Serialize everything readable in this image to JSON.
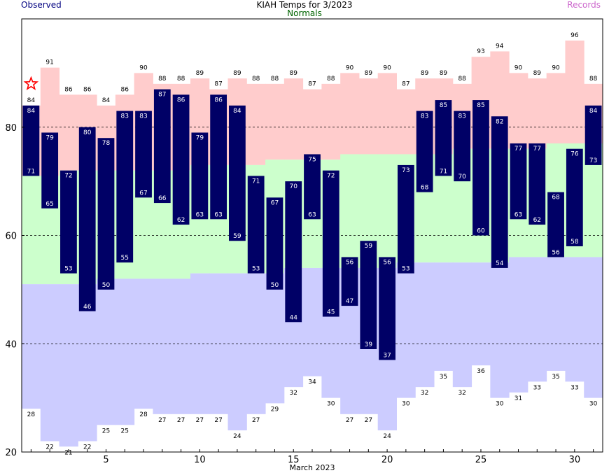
{
  "header": {
    "title": "KIAH Temps for 3/2023",
    "observed_label": "Observed",
    "normals_label": "Normals",
    "records_label": "Records"
  },
  "colors": {
    "observed_bar": "#000066",
    "record_high_band": "#ffcccc",
    "normal_band": "#ccffcc",
    "record_low_band": "#ccccff",
    "observed_text": "#000080",
    "normals_text": "#006400",
    "records_text": "#cc66cc",
    "marker": "#ff0000"
  },
  "chart_data": {
    "type": "bar",
    "xlabel": "March 2023",
    "ylabel": "",
    "x": [
      1,
      2,
      3,
      4,
      5,
      6,
      7,
      8,
      9,
      10,
      11,
      12,
      13,
      14,
      15,
      16,
      17,
      18,
      19,
      20,
      21,
      22,
      23,
      24,
      25,
      26,
      27,
      28,
      29,
      30,
      31
    ],
    "xticks": [
      5,
      10,
      15,
      20,
      25,
      30
    ],
    "ylim": [
      20,
      100
    ],
    "yticks": [
      20,
      40,
      60,
      80
    ],
    "grid_lines": [
      40,
      60,
      80
    ],
    "series": [
      {
        "name": "Observed High",
        "values": [
          84,
          79,
          72,
          80,
          78,
          83,
          83,
          87,
          86,
          79,
          86,
          84,
          71,
          67,
          70,
          75,
          72,
          56,
          59,
          56,
          73,
          83,
          85,
          83,
          85,
          82,
          77,
          77,
          68,
          76,
          84
        ]
      },
      {
        "name": "Observed Low",
        "values": [
          71,
          65,
          53,
          46,
          50,
          55,
          67,
          66,
          62,
          63,
          63,
          59,
          53,
          50,
          44,
          63,
          45,
          47,
          39,
          37,
          53,
          68,
          71,
          70,
          60,
          54,
          63,
          62,
          56,
          58,
          73
        ]
      },
      {
        "name": "Record High",
        "values": [
          84,
          91,
          86,
          86,
          84,
          86,
          90,
          88,
          88,
          89,
          87,
          89,
          88,
          88,
          89,
          87,
          88,
          90,
          89,
          90,
          87,
          89,
          89,
          88,
          93,
          94,
          90,
          89,
          90,
          96,
          88
        ]
      },
      {
        "name": "Record Low",
        "values": [
          28,
          22,
          21,
          22,
          25,
          25,
          28,
          27,
          27,
          27,
          27,
          24,
          27,
          29,
          32,
          34,
          30,
          27,
          27,
          24,
          30,
          32,
          35,
          32,
          36,
          30,
          31,
          33,
          35,
          33,
          30
        ]
      },
      {
        "name": "Normal High",
        "values": [
          71,
          71,
          72,
          72,
          72,
          72,
          72,
          72,
          72,
          73,
          73,
          73,
          73,
          74,
          74,
          74,
          74,
          75,
          75,
          75,
          75,
          75,
          75,
          76,
          76,
          76,
          76,
          76,
          77,
          77,
          77
        ]
      },
      {
        "name": "Normal Low",
        "values": [
          51,
          51,
          51,
          51,
          52,
          52,
          52,
          52,
          52,
          53,
          53,
          53,
          53,
          53,
          54,
          54,
          54,
          54,
          54,
          54,
          55,
          55,
          55,
          55,
          55,
          55,
          56,
          56,
          56,
          56,
          56
        ]
      }
    ],
    "markers": [
      {
        "x": 1,
        "y": 88,
        "shape": "star"
      }
    ]
  }
}
